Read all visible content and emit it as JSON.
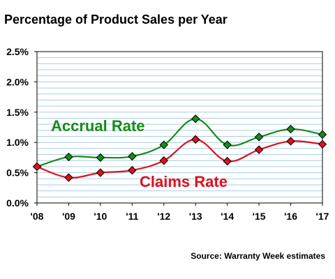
{
  "title": "Percentage of Product Sales per Year",
  "source": "Source: Warranty Week estimates",
  "colors": {
    "accrual": "#168c16",
    "claims": "#e0101a",
    "grid": "#a8cde6",
    "marker_outline": "#000000"
  },
  "chart_data": {
    "type": "line",
    "title": "Percentage of Product Sales per Year",
    "x": [
      "'08",
      "'09",
      "'10",
      "'11",
      "'12",
      "'13",
      "'14",
      "'15",
      "'16",
      "'17"
    ],
    "series": [
      {
        "name": "Accrual Rate",
        "values": [
          0.6,
          0.76,
          0.75,
          0.77,
          0.96,
          1.39,
          0.96,
          1.09,
          1.22,
          1.13
        ]
      },
      {
        "name": "Claims Rate",
        "values": [
          0.6,
          0.42,
          0.5,
          0.54,
          0.7,
          1.05,
          0.69,
          0.88,
          1.02,
          0.97
        ]
      }
    ],
    "y_ticks": [
      "0.0%",
      "0.5%",
      "1.0%",
      "1.5%",
      "2.0%",
      "2.5%"
    ],
    "ylim": [
      0,
      2.5
    ],
    "y_unit": "%",
    "grid": true,
    "marker": "diamond",
    "smooth": true
  }
}
